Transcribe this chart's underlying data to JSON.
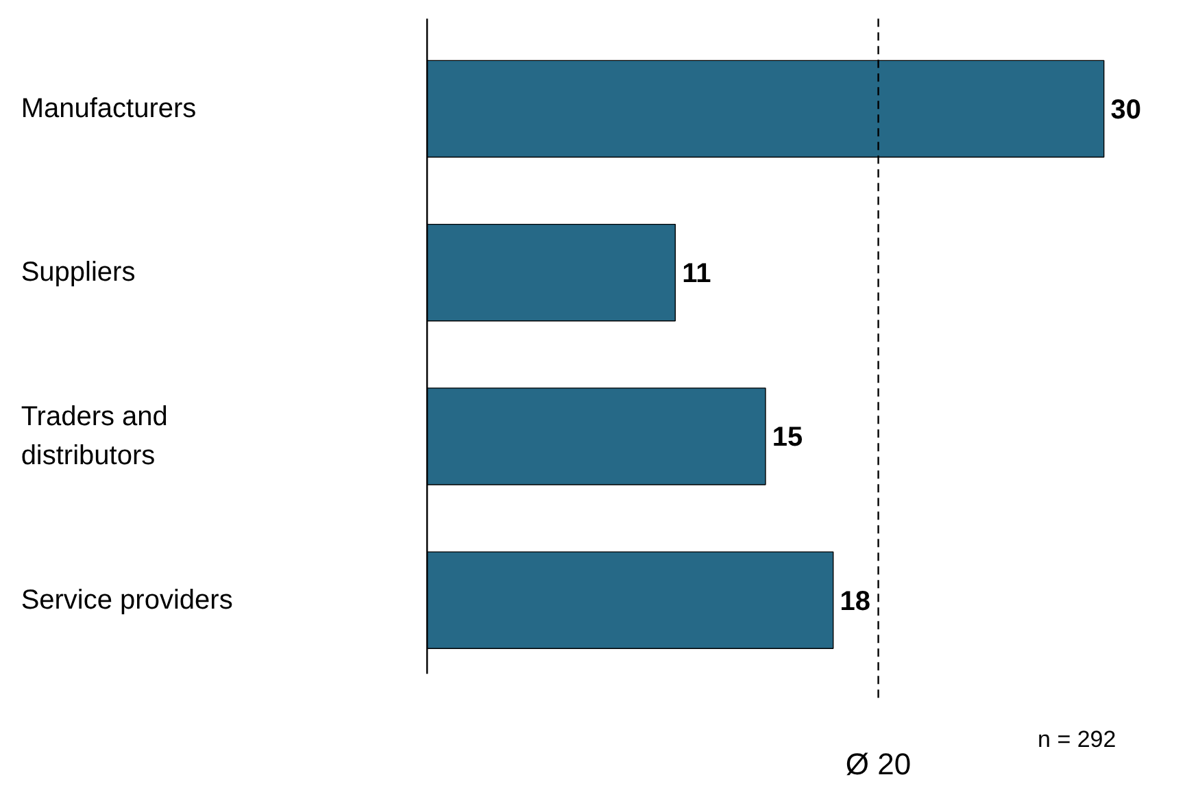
{
  "chart_data": {
    "type": "bar",
    "orientation": "horizontal",
    "categories": [
      "Manufacturers",
      "Suppliers",
      "Traders and distributors",
      "Service providers"
    ],
    "values": [
      30,
      11,
      15,
      18
    ],
    "color": "#266987",
    "data_labels": true,
    "ref_lines": [
      {
        "axis": "x",
        "value": 20,
        "label": "Ø 20",
        "line_style": "dashed",
        "color": "#000000"
      }
    ],
    "annotations": [
      "n = 292"
    ]
  }
}
